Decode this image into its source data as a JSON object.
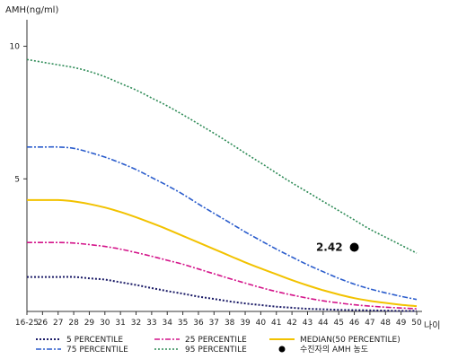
{
  "chart_data": {
    "type": "line",
    "ylabel": "AMH(ng/ml)",
    "xlabel": "나이",
    "ylim": [
      0,
      11
    ],
    "yticks": [
      5,
      10
    ],
    "x_categories": [
      "16-25",
      "26",
      "27",
      "28",
      "29",
      "30",
      "31",
      "32",
      "33",
      "34",
      "35",
      "36",
      "37",
      "38",
      "39",
      "40",
      "41",
      "42",
      "43",
      "44",
      "45",
      "46",
      "47",
      "48",
      "49",
      "50"
    ],
    "series": [
      {
        "name": "5 PERCENTILE",
        "color": "#1a1a66",
        "dash": "2,2",
        "width": 2,
        "values": [
          1.3,
          1.3,
          1.3,
          1.3,
          1.25,
          1.2,
          1.1,
          1.0,
          0.88,
          0.77,
          0.67,
          0.56,
          0.47,
          0.38,
          0.3,
          0.24,
          0.18,
          0.14,
          0.1,
          0.08,
          0.06,
          0.05,
          0.04,
          0.03,
          0.02,
          0.02
        ]
      },
      {
        "name": "25 PERCENTILE",
        "color": "#d4148a",
        "dash": "6,2,2,2",
        "width": 1.6,
        "values": [
          2.6,
          2.6,
          2.6,
          2.58,
          2.52,
          2.45,
          2.35,
          2.22,
          2.08,
          1.93,
          1.78,
          1.6,
          1.42,
          1.24,
          1.07,
          0.9,
          0.75,
          0.62,
          0.5,
          0.4,
          0.32,
          0.25,
          0.2,
          0.16,
          0.13,
          0.1
        ]
      },
      {
        "name": "MEDIAN(50 PERCENTILE)",
        "color": "#f2c200",
        "dash": "",
        "width": 2,
        "values": [
          4.2,
          4.2,
          4.2,
          4.15,
          4.05,
          3.92,
          3.75,
          3.55,
          3.33,
          3.1,
          2.85,
          2.6,
          2.35,
          2.1,
          1.85,
          1.62,
          1.4,
          1.18,
          0.98,
          0.8,
          0.64,
          0.5,
          0.4,
          0.32,
          0.25,
          0.2
        ]
      },
      {
        "name": "75 PERCENTILE",
        "color": "#2a5ccc",
        "dash": "6,2,2,2",
        "width": 1.6,
        "values": [
          6.2,
          6.2,
          6.2,
          6.15,
          6.0,
          5.82,
          5.6,
          5.35,
          5.05,
          4.75,
          4.42,
          4.05,
          3.7,
          3.35,
          3.0,
          2.67,
          2.35,
          2.05,
          1.76,
          1.5,
          1.25,
          1.03,
          0.85,
          0.7,
          0.57,
          0.45
        ]
      },
      {
        "name": "95 PERCENTILE",
        "color": "#2e8b57",
        "dash": "2,2",
        "width": 1.6,
        "values": [
          9.5,
          9.4,
          9.3,
          9.2,
          9.05,
          8.85,
          8.6,
          8.35,
          8.05,
          7.75,
          7.42,
          7.07,
          6.72,
          6.35,
          5.97,
          5.6,
          5.22,
          4.85,
          4.5,
          4.15,
          3.8,
          3.45,
          3.1,
          2.8,
          2.5,
          2.2
        ]
      }
    ],
    "marker": {
      "name": "수진자의 AMH 농도",
      "x": "46",
      "y": 2.42,
      "label": "2.42",
      "color": "#000000"
    },
    "grid": false,
    "legend_position": "bottom"
  }
}
